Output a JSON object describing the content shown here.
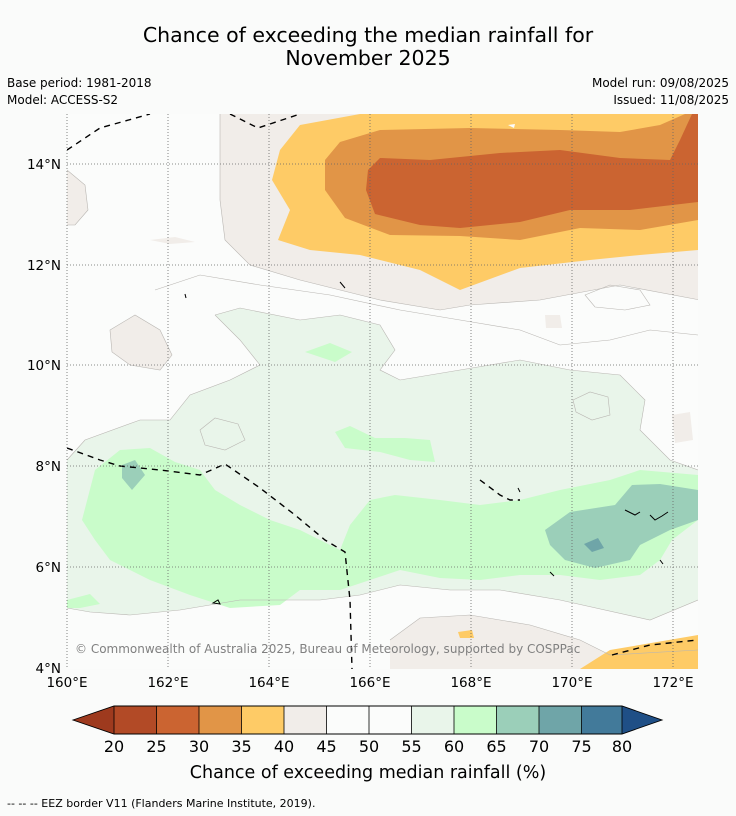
{
  "title_line1": "Chance of exceeding the median rainfall for",
  "title_line2": "November 2025",
  "base_period": "Base period: 1981-2018",
  "model": "Model: ACCESS-S2",
  "model_run": "Model run: 09/08/2025",
  "issued": "Issued: 11/08/2025",
  "copyright": "© Commonwealth of Australia 2025, Bureau of Meteorology, supported by COSPPac",
  "footnote": "--  --  -- EEZ border V11 (Flanders Marine Institute, 2019).",
  "x_ticks": [
    "160°E",
    "162°E",
    "164°E",
    "166°E",
    "168°E",
    "170°E",
    "172°E"
  ],
  "y_ticks": [
    "14°N",
    "12°N",
    "10°N",
    "8°N",
    "6°N",
    "4°N"
  ],
  "colorbar_label": "Chance of exceeding median rainfall (%)",
  "colorbar_ticks": [
    "20",
    "25",
    "30",
    "35",
    "40",
    "45",
    "50",
    "55",
    "60",
    "65",
    "70",
    "75",
    "80"
  ],
  "colors": {
    "below20": "#9e3a1e",
    "c20_25": "#b24a26",
    "c25_30": "#cb6431",
    "c30_35": "#e19547",
    "c35_40": "#fecb66",
    "c40_45": "#f1ede9",
    "c45_55": "#fbfcfb",
    "c55_60": "#e9f5ea",
    "c60_65": "#c9fcca",
    "c65_70": "#9bcfb9",
    "c70_75": "#6fa5a8",
    "c75_80": "#427a9a",
    "above80": "#1f4f86"
  }
}
